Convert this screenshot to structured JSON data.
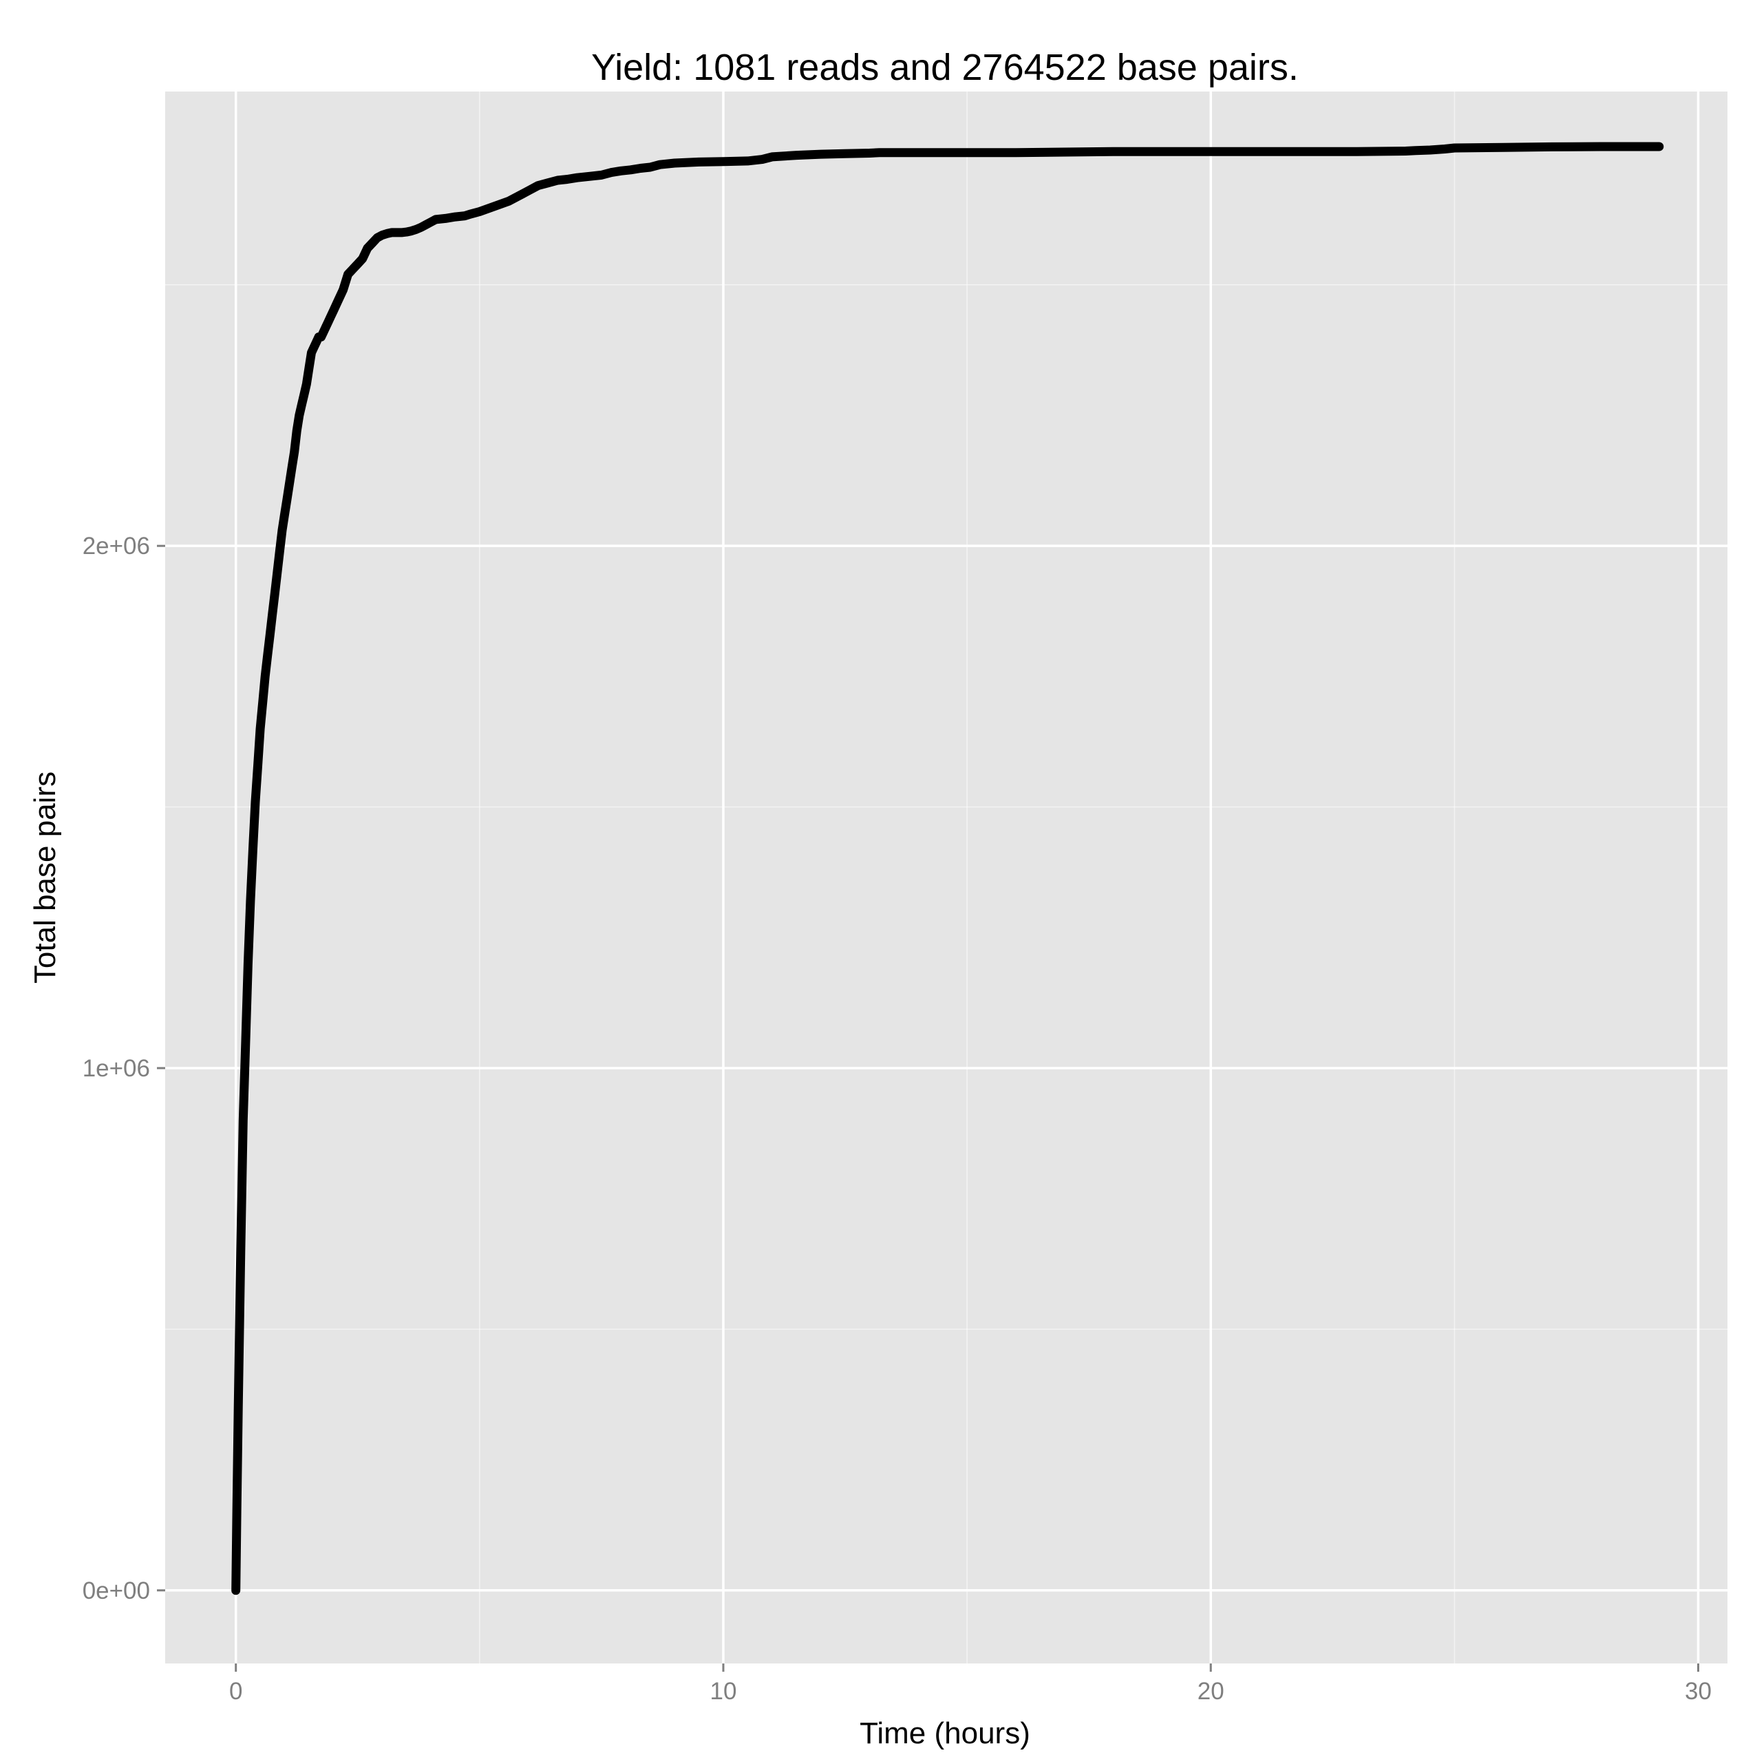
{
  "chart_data": {
    "type": "line",
    "title": "Yield: 1081 reads and 2764522 base pairs.",
    "xlabel": "Time (hours)",
    "ylabel": "Total base pairs",
    "xlim": [
      -1.45,
      30.6
    ],
    "ylim": [
      -140000,
      2870000
    ],
    "x_ticks": [
      0,
      10,
      20,
      30
    ],
    "x_tick_labels": [
      "0",
      "10",
      "20",
      "30"
    ],
    "x_minor": [
      5,
      15,
      25
    ],
    "y_ticks": [
      0,
      1000000,
      2000000
    ],
    "y_tick_labels": [
      "0e+00",
      "1e+06",
      "2e+06"
    ],
    "y_minor": [
      500000,
      1500000,
      2500000
    ],
    "grid": true,
    "legend": "none",
    "colors": {
      "panel": "#e5e5e5",
      "grid": "#ffffff",
      "line": "#000000",
      "tick_text": "#7f7f7f"
    },
    "series": [
      {
        "x": [
          0,
          0.02,
          0.05,
          0.1,
          0.15,
          0.2,
          0.25,
          0.3,
          0.35,
          0.4,
          0.45,
          0.5,
          0.55,
          0.6,
          0.65,
          0.7,
          0.75,
          0.8,
          0.85,
          0.9,
          0.95,
          1.0,
          1.05,
          1.1,
          1.15,
          1.2,
          1.25,
          1.3,
          1.35,
          1.4,
          1.45,
          1.5,
          1.55,
          1.6,
          1.65,
          1.7,
          1.75,
          1.8,
          1.85,
          1.9,
          1.95,
          2.0,
          2.1,
          2.2,
          2.3,
          2.4,
          2.5,
          2.6,
          2.7,
          2.8,
          2.9,
          3.0,
          3.1,
          3.2,
          3.3,
          3.4,
          3.5,
          3.6,
          3.7,
          3.8,
          3.9,
          4.0,
          4.1,
          4.3,
          4.5,
          4.7,
          4.8,
          5.0,
          5.3,
          5.6,
          5.8,
          6.0,
          6.2,
          6.4,
          6.6,
          6.8,
          7.0,
          7.3,
          7.5,
          7.7,
          7.9,
          8.1,
          8.3,
          8.5,
          8.7,
          9.0,
          9.5,
          10.0,
          10.5,
          10.8,
          11.0,
          11.5,
          12.0,
          12.5,
          13.0,
          13.2,
          14.0,
          15.0,
          16.0,
          17.0,
          18.0,
          19.0,
          20.0,
          21.0,
          22.0,
          23.0,
          24.0,
          24.2,
          24.5,
          24.8,
          25.0,
          26.0,
          27.0,
          28.0,
          29.0,
          29.2
        ],
        "y": [
          0,
          150000,
          350000,
          650000,
          900000,
          1050000,
          1200000,
          1320000,
          1420000,
          1510000,
          1580000,
          1650000,
          1700000,
          1750000,
          1790000,
          1830000,
          1870000,
          1910000,
          1950000,
          1990000,
          2030000,
          2060000,
          2090000,
          2120000,
          2150000,
          2180000,
          2220000,
          2250000,
          2270000,
          2290000,
          2310000,
          2340000,
          2370000,
          2380000,
          2390000,
          2400000,
          2400000,
          2410000,
          2420000,
          2430000,
          2440000,
          2450000,
          2470000,
          2490000,
          2520000,
          2530000,
          2540000,
          2550000,
          2570000,
          2580000,
          2590000,
          2595000,
          2598000,
          2600000,
          2600000,
          2600000,
          2601000,
          2603000,
          2606000,
          2610000,
          2615000,
          2620000,
          2625000,
          2627000,
          2630000,
          2632000,
          2635000,
          2640000,
          2650000,
          2660000,
          2670000,
          2680000,
          2690000,
          2695000,
          2700000,
          2702000,
          2705000,
          2708000,
          2710000,
          2715000,
          2718000,
          2720000,
          2723000,
          2725000,
          2730000,
          2733000,
          2735000,
          2736000,
          2737000,
          2740000,
          2745000,
          2748000,
          2750000,
          2751000,
          2752000,
          2753000,
          2753000,
          2753000,
          2753000,
          2754000,
          2755000,
          2755000,
          2755000,
          2755000,
          2755000,
          2755000,
          2756000,
          2757000,
          2758000,
          2760000,
          2762000,
          2763000,
          2764000,
          2764522,
          2764522,
          2764522
        ]
      }
    ]
  }
}
